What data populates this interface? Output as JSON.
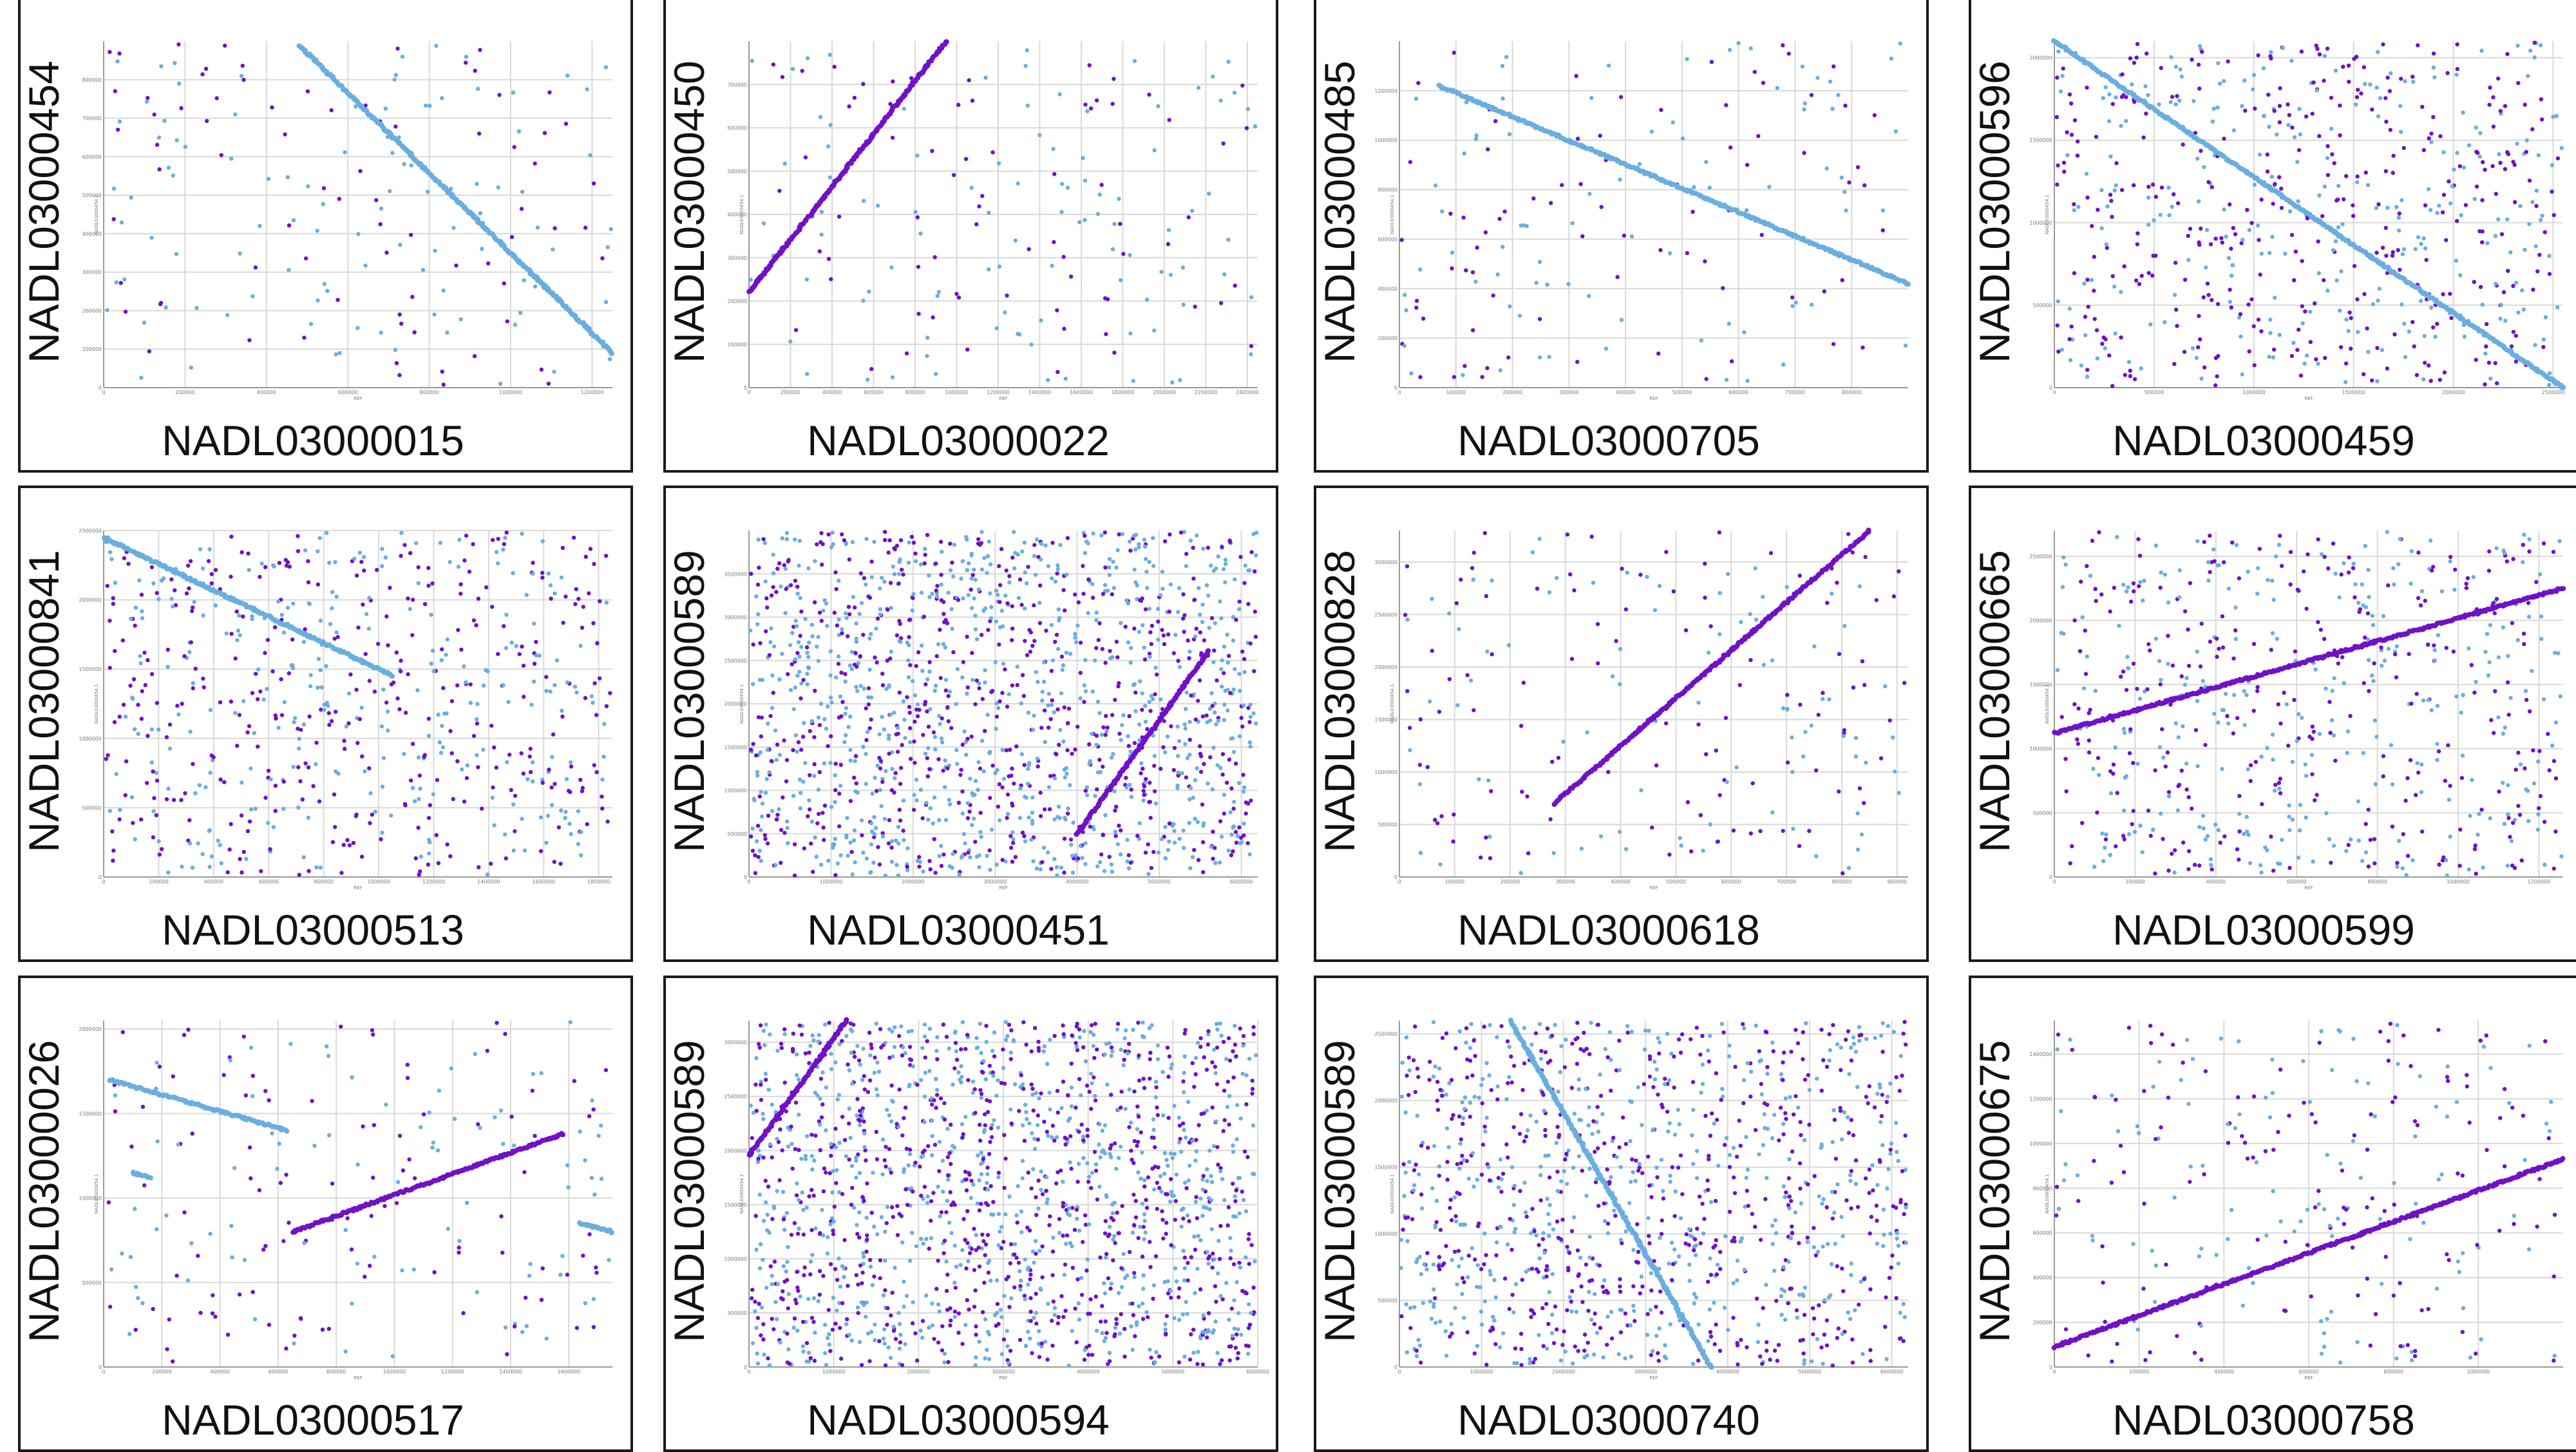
{
  "colors": {
    "purple": "#7010c8",
    "blue": "#6aaee0",
    "border": "#1a1a1a",
    "grid": "#d9d9d9"
  },
  "axis_titles": {
    "x": "REF",
    "y": "NADL03000454.1"
  },
  "chart_data": [
    {
      "type": "scatter",
      "x_label": "NADL03000015",
      "y_label": "NADL03000454",
      "xlim": [
        0,
        1250000
      ],
      "ylim": [
        0,
        900000
      ],
      "x_ticks": [
        "0",
        "200000",
        "400000",
        "600000",
        "800000",
        "1000000",
        "1200000"
      ],
      "y_ticks": [
        "0",
        "100000",
        "200000",
        "300000",
        "400000",
        "500000",
        "600000",
        "700000",
        "800000"
      ],
      "segments": [
        {
          "color": "blue",
          "x": [
            480000,
            1250000
          ],
          "y": [
            890000,
            90000
          ]
        }
      ],
      "noise": {
        "count": 180,
        "purple_share": 0.5
      }
    },
    {
      "type": "scatter",
      "x_label": "NADL03000022",
      "y_label": "NADL03000450",
      "xlim": [
        0,
        2450000
      ],
      "ylim": [
        0,
        800000
      ],
      "x_ticks": [
        "0",
        "200000",
        "400000",
        "600000",
        "800000",
        "1000000",
        "1200000",
        "1400000",
        "1600000",
        "1800000",
        "2000000",
        "2200000",
        "2400000"
      ],
      "y_ticks": [
        "0",
        "100000",
        "200000",
        "300000",
        "400000",
        "500000",
        "600000",
        "700000"
      ],
      "segments": [
        {
          "color": "purple",
          "x": [
            0,
            950000
          ],
          "y": [
            220000,
            800000
          ]
        }
      ],
      "noise": {
        "count": 170,
        "purple_share": 0.5
      }
    },
    {
      "type": "scatter",
      "x_label": "NADL03000705",
      "y_label": "NADL03000485",
      "xlim": [
        0,
        900000
      ],
      "ylim": [
        0,
        1400000
      ],
      "x_ticks": [
        "0",
        "100000",
        "200000",
        "300000",
        "400000",
        "500000",
        "600000",
        "700000",
        "800000"
      ],
      "y_ticks": [
        "0",
        "200000",
        "400000",
        "600000",
        "800000",
        "1000000",
        "1200000"
      ],
      "segments": [
        {
          "color": "blue",
          "x": [
            70000,
            900000
          ],
          "y": [
            1220000,
            420000
          ]
        }
      ],
      "noise": {
        "count": 160,
        "purple_share": 0.5
      }
    },
    {
      "type": "scatter",
      "x_label": "NADL03000459",
      "y_label": "NADL03000596",
      "xlim": [
        0,
        2550000
      ],
      "ylim": [
        0,
        2100000
      ],
      "x_ticks": [
        "0",
        "500000",
        "1000000",
        "1500000",
        "2000000",
        "2500000"
      ],
      "y_ticks": [
        "0",
        "500000",
        "1000000",
        "1500000",
        "2000000"
      ],
      "segments": [
        {
          "color": "blue",
          "x": [
            0,
            2550000
          ],
          "y": [
            2100000,
            0
          ]
        }
      ],
      "noise": {
        "count": 640,
        "purple_share": 0.55
      }
    },
    {
      "type": "scatter",
      "x_label": "NADL03000513",
      "y_label": "NADL03000841",
      "xlim": [
        0,
        1850000
      ],
      "ylim": [
        0,
        2500000
      ],
      "x_ticks": [
        "0",
        "200000",
        "400000",
        "600000",
        "800000",
        "1000000",
        "1200000",
        "1400000",
        "1600000",
        "1800000"
      ],
      "y_ticks": [
        "0",
        "500000",
        "1000000",
        "1500000",
        "2000000",
        "2500000"
      ],
      "segments": [
        {
          "color": "blue",
          "x": [
            0,
            1050000
          ],
          "y": [
            2450000,
            1450000
          ]
        }
      ],
      "noise": {
        "count": 650,
        "purple_share": 0.55
      }
    },
    {
      "type": "scatter",
      "x_label": "NADL03000451",
      "y_label": "NADL03000589",
      "xlim": [
        0,
        6200000
      ],
      "ylim": [
        0,
        4000000
      ],
      "x_ticks": [
        "0",
        "1000000",
        "2000000",
        "3000000",
        "4000000",
        "5000000",
        "6000000"
      ],
      "y_ticks": [
        "0",
        "500000",
        "1000000",
        "1500000",
        "2000000",
        "2500000",
        "3000000",
        "3500000"
      ],
      "segments": [
        {
          "color": "purple",
          "x": [
            4000000,
            5600000
          ],
          "y": [
            500000,
            2600000
          ]
        }
      ],
      "noise": {
        "count": 1500,
        "purple_share": 0.45
      }
    },
    {
      "type": "scatter",
      "x_label": "NADL03000618",
      "y_label": "NADL03000828",
      "xlim": [
        0,
        920000
      ],
      "ylim": [
        0,
        3300000
      ],
      "x_ticks": [
        "0",
        "100000",
        "200000",
        "300000",
        "400000",
        "500000",
        "600000",
        "700000",
        "800000",
        "900000"
      ],
      "y_ticks": [
        "0",
        "500000",
        "1000000",
        "1500000",
        "2000000",
        "2500000",
        "3000000"
      ],
      "segments": [
        {
          "color": "purple",
          "x": [
            280000,
            850000
          ],
          "y": [
            700000,
            3300000
          ]
        }
      ],
      "noise": {
        "count": 200,
        "purple_share": 0.55
      }
    },
    {
      "type": "scatter",
      "x_label": "NADL03000599",
      "y_label": "NADL03000665",
      "xlim": [
        0,
        1260000
      ],
      "ylim": [
        0,
        2700000
      ],
      "x_ticks": [
        "0",
        "200000",
        "400000",
        "600000",
        "800000",
        "1000000",
        "1200000"
      ],
      "y_ticks": [
        "0",
        "500000",
        "1000000",
        "1500000",
        "2000000",
        "2500000"
      ],
      "segments": [
        {
          "color": "purple",
          "x": [
            0,
            1260000
          ],
          "y": [
            1120000,
            2250000
          ]
        }
      ],
      "noise": {
        "count": 620,
        "purple_share": 0.5
      }
    },
    {
      "type": "scatter",
      "x_label": "NADL03000517",
      "y_label": "NADL03000026",
      "xlim": [
        0,
        1750000
      ],
      "ylim": [
        0,
        2050000
      ],
      "x_ticks": [
        "0",
        "200000",
        "400000",
        "600000",
        "800000",
        "1000000",
        "1200000",
        "1400000",
        "1600000"
      ],
      "y_ticks": [
        "0",
        "500000",
        "1000000",
        "1500000",
        "2000000"
      ],
      "segments": [
        {
          "color": "blue",
          "x": [
            20000,
            630000
          ],
          "y": [
            1700000,
            1400000
          ]
        },
        {
          "color": "blue",
          "x": [
            100000,
            160000
          ],
          "y": [
            1150000,
            1120000
          ]
        },
        {
          "color": "purple",
          "x": [
            650000,
            1580000
          ],
          "y": [
            800000,
            1380000
          ]
        },
        {
          "color": "blue",
          "x": [
            1640000,
            1750000
          ],
          "y": [
            850000,
            800000
          ]
        }
      ],
      "noise": {
        "count": 200,
        "purple_share": 0.55
      }
    },
    {
      "type": "scatter",
      "x_label": "NADL03000594",
      "y_label": "NADL03000589",
      "xlim": [
        0,
        6000000
      ],
      "ylim": [
        0,
        3200000
      ],
      "x_ticks": [
        "0",
        "1000000",
        "2000000",
        "3000000",
        "4000000",
        "5000000",
        "6000000"
      ],
      "y_ticks": [
        "0",
        "500000",
        "1000000",
        "1500000",
        "2000000",
        "2500000",
        "3000000"
      ],
      "segments": [
        {
          "color": "purple",
          "x": [
            0,
            1150000
          ],
          "y": [
            1950000,
            3200000
          ]
        }
      ],
      "noise": {
        "count": 1600,
        "purple_share": 0.5
      }
    },
    {
      "type": "scatter",
      "x_label": "NADL03000740",
      "y_label": "NADL03000589",
      "xlim": [
        0,
        6200000
      ],
      "ylim": [
        0,
        2600000
      ],
      "x_ticks": [
        "0",
        "1000000",
        "2000000",
        "3000000",
        "4000000",
        "5000000",
        "6000000"
      ],
      "y_ticks": [
        "0",
        "500000",
        "1000000",
        "1500000",
        "2000000",
        "2500000"
      ],
      "segments": [
        {
          "color": "blue",
          "x": [
            1350000,
            3800000
          ],
          "y": [
            2600000,
            0
          ]
        }
      ],
      "noise": {
        "count": 1100,
        "purple_share": 0.5
      }
    },
    {
      "type": "scatter",
      "x_label": "NADL03000758",
      "y_label": "NADL03000675",
      "xlim": [
        0,
        1200000
      ],
      "ylim": [
        0,
        1550000
      ],
      "x_ticks": [
        "0",
        "200000",
        "400000",
        "600000",
        "800000",
        "1000000"
      ],
      "y_ticks": [
        "0",
        "200000",
        "400000",
        "600000",
        "800000",
        "1000000",
        "1200000",
        "1400000"
      ],
      "segments": [
        {
          "color": "purple",
          "x": [
            0,
            1200000
          ],
          "y": [
            90000,
            930000
          ]
        }
      ],
      "noise": {
        "count": 260,
        "purple_share": 0.55
      }
    }
  ]
}
